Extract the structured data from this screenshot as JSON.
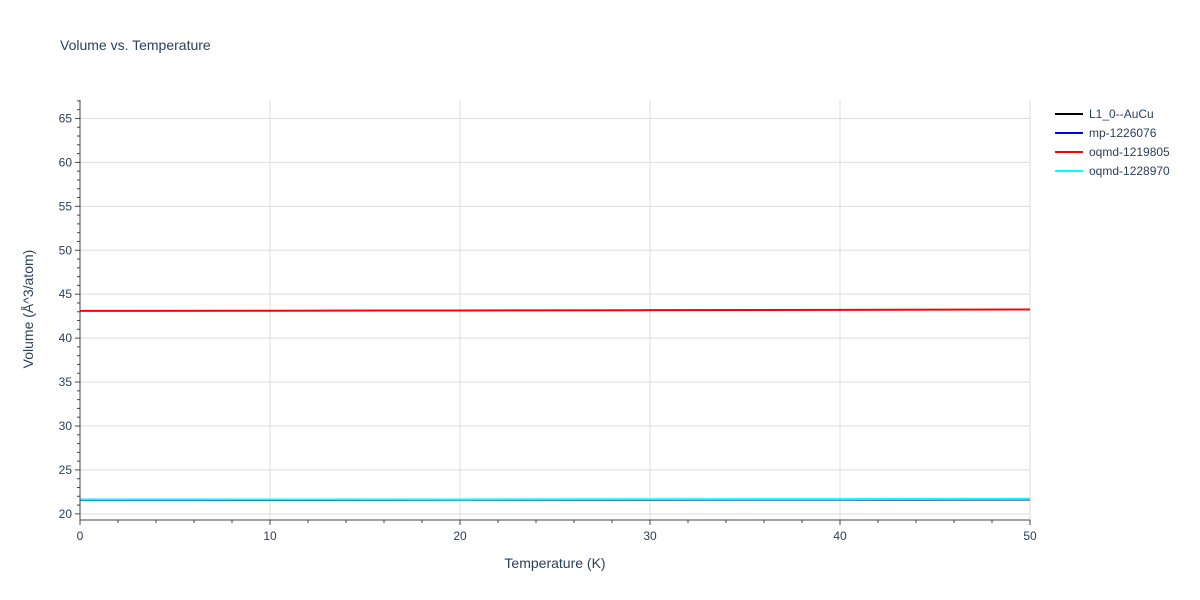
{
  "chart_data": {
    "type": "line",
    "title": "Volume vs. Temperature",
    "xlabel": "Temperature (K)",
    "ylabel": "Volume (Å^3/atom)",
    "xlim": [
      0,
      50
    ],
    "ylim": [
      19.3,
      67.1
    ],
    "x_ticks": [
      0,
      10,
      20,
      30,
      40,
      50
    ],
    "y_ticks": [
      20,
      25,
      30,
      35,
      40,
      45,
      50,
      55,
      60,
      65
    ],
    "grid": true,
    "legend_position": "right",
    "series": [
      {
        "name": "L1_0--AuCu",
        "color": "#000000",
        "x": [
          0,
          10,
          20,
          30,
          40,
          50
        ],
        "y": [
          21.58,
          21.59,
          21.6,
          21.61,
          21.62,
          21.64
        ]
      },
      {
        "name": "mp-1226076",
        "color": "#0000ff",
        "x": [
          0,
          10,
          20,
          30,
          40,
          50
        ],
        "y": [
          21.6,
          21.61,
          21.62,
          21.63,
          21.64,
          21.66
        ]
      },
      {
        "name": "oqmd-1219805",
        "color": "#ff0000",
        "x": [
          0,
          10,
          20,
          30,
          40,
          50
        ],
        "y": [
          43.1,
          43.12,
          43.15,
          43.18,
          43.22,
          43.26
        ]
      },
      {
        "name": "oqmd-1228970",
        "color": "#00ffff",
        "x": [
          0,
          10,
          20,
          30,
          40,
          50
        ],
        "y": [
          21.62,
          21.63,
          21.64,
          21.66,
          21.68,
          21.71
        ]
      }
    ]
  }
}
